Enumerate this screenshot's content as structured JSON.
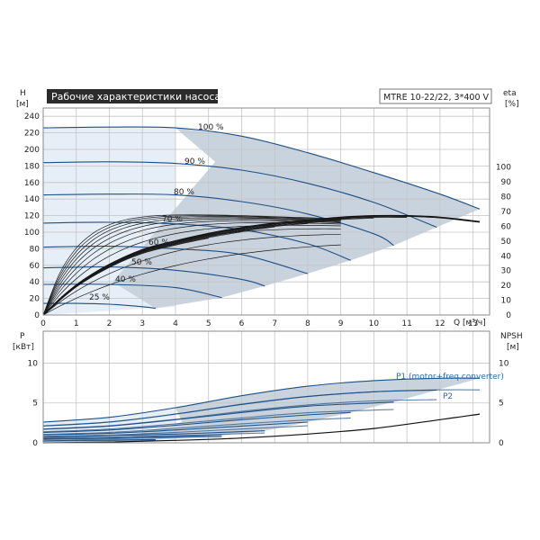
{
  "chart_data": [
    {
      "type": "line",
      "title": "Рабочие характеристики насоса",
      "model": "MTRE 10-22/22, 3*400 V",
      "ylabel_left": [
        "H",
        "[м]"
      ],
      "ylabel_right": [
        "eta",
        "[%]"
      ],
      "xlabel": "Q [м³/ч]",
      "xlim": [
        0,
        13.5
      ],
      "ylim_left": [
        0,
        250
      ],
      "ylim_right": [
        0,
        140
      ],
      "x_ticks": [
        "0",
        "1",
        "2",
        "3",
        "4",
        "5",
        "6",
        "7",
        "8",
        "9",
        "10",
        "11",
        "12",
        "13"
      ],
      "y_ticks_left": [
        "0",
        "20",
        "40",
        "60",
        "80",
        "100",
        "120",
        "140",
        "160",
        "180",
        "200",
        "220",
        "240"
      ],
      "y_ticks_right": [
        "0",
        "10",
        "20",
        "30",
        "40",
        "50",
        "60",
        "70",
        "80",
        "90",
        "100"
      ],
      "grid": true,
      "series": [
        {
          "name": "100 %",
          "x": [
            0,
            2,
            4,
            6,
            8,
            10,
            12,
            13.2
          ],
          "values": [
            226,
            227,
            226,
            216,
            196,
            172,
            146,
            128
          ]
        },
        {
          "name": "90 %",
          "x": [
            0,
            2,
            4,
            6,
            8,
            10,
            11.9
          ],
          "values": [
            184,
            185,
            183,
            175,
            159,
            136,
            106
          ]
        },
        {
          "name": "80 %",
          "x": [
            0,
            2,
            4,
            6,
            8,
            10,
            10.6
          ],
          "values": [
            145,
            146,
            145,
            137,
            122,
            98,
            84
          ]
        },
        {
          "name": "70 %",
          "x": [
            0,
            2,
            4,
            6,
            8,
            9.3
          ],
          "values": [
            111,
            112,
            110,
            103,
            86,
            66
          ]
        },
        {
          "name": "60 %",
          "x": [
            0,
            2,
            4,
            6,
            8
          ],
          "values": [
            82,
            83,
            80,
            73,
            50
          ]
        },
        {
          "name": "50 %",
          "x": [
            0,
            2,
            4,
            6,
            6.7
          ],
          "values": [
            57,
            58,
            54,
            43,
            35
          ]
        },
        {
          "name": "40 %",
          "x": [
            0,
            2,
            4,
            5.4
          ],
          "values": [
            37,
            37,
            33,
            21
          ]
        },
        {
          "name": "25 %",
          "x": [
            0,
            1,
            2,
            3,
            3.4
          ],
          "values": [
            14,
            14,
            13,
            10,
            8
          ]
        }
      ],
      "efficiency": {
        "x": [
          0,
          1,
          2,
          3,
          4,
          5,
          6,
          7,
          8,
          9,
          10,
          11,
          12,
          13.2
        ],
        "values": [
          0,
          20,
          34,
          44,
          50,
          55,
          59,
          62,
          64,
          66,
          67,
          67,
          66,
          63
        ]
      }
    },
    {
      "type": "line",
      "ylabel_left": [
        "P",
        "[кВт]"
      ],
      "ylabel_right": [
        "NPSH",
        "[м]"
      ],
      "xlim": [
        0,
        13.5
      ],
      "ylim_left": [
        0,
        14
      ],
      "ylim_right": [
        0,
        14
      ],
      "y_ticks_left": [
        "0",
        "5",
        "10"
      ],
      "y_ticks_right": [
        "0",
        "5",
        "10"
      ],
      "grid": true,
      "legend": [
        "P1 (motor+freq.converter)",
        "P2"
      ],
      "series": [
        {
          "name": "100 %",
          "x": [
            0,
            2,
            4,
            6,
            8,
            10,
            12,
            13.2
          ],
          "values": [
            2.6,
            3.2,
            4.4,
            5.9,
            7.1,
            7.8,
            8.1,
            8.1
          ]
        },
        {
          "name": "90 %",
          "x": [
            0,
            2,
            4,
            6,
            8,
            10,
            11.9
          ],
          "values": [
            2.1,
            2.6,
            3.6,
            4.8,
            5.8,
            6.4,
            6.6
          ]
        },
        {
          "name": "80 %",
          "x": [
            0,
            2,
            4,
            6,
            8,
            10,
            10.6
          ],
          "values": [
            1.7,
            2.1,
            2.9,
            3.8,
            4.6,
            5.0,
            5.1
          ]
        },
        {
          "name": "70 %",
          "x": [
            0,
            2,
            4,
            6,
            8,
            9.3
          ],
          "values": [
            1.3,
            1.6,
            2.2,
            2.9,
            3.5,
            3.8
          ]
        },
        {
          "name": "60 %",
          "x": [
            0,
            2,
            4,
            6,
            8
          ],
          "values": [
            1.0,
            1.2,
            1.6,
            2.1,
            2.6
          ]
        },
        {
          "name": "50 %",
          "x": [
            0,
            2,
            4,
            6,
            6.7
          ],
          "values": [
            0.7,
            0.9,
            1.1,
            1.4,
            1.5
          ]
        },
        {
          "name": "40 %",
          "x": [
            0,
            2,
            4,
            5.4
          ],
          "values": [
            0.5,
            0.6,
            0.8,
            0.9
          ]
        },
        {
          "name": "25 %",
          "x": [
            0,
            1,
            2,
            3,
            3.4
          ],
          "values": [
            0.25,
            0.3,
            0.35,
            0.4,
            0.4
          ]
        }
      ],
      "npsh": {
        "x": [
          0,
          2,
          4,
          6,
          8,
          10,
          12,
          13.2
        ],
        "values": [
          0,
          0.1,
          0.3,
          0.6,
          1.1,
          1.8,
          2.9,
          3.6
        ]
      }
    }
  ]
}
